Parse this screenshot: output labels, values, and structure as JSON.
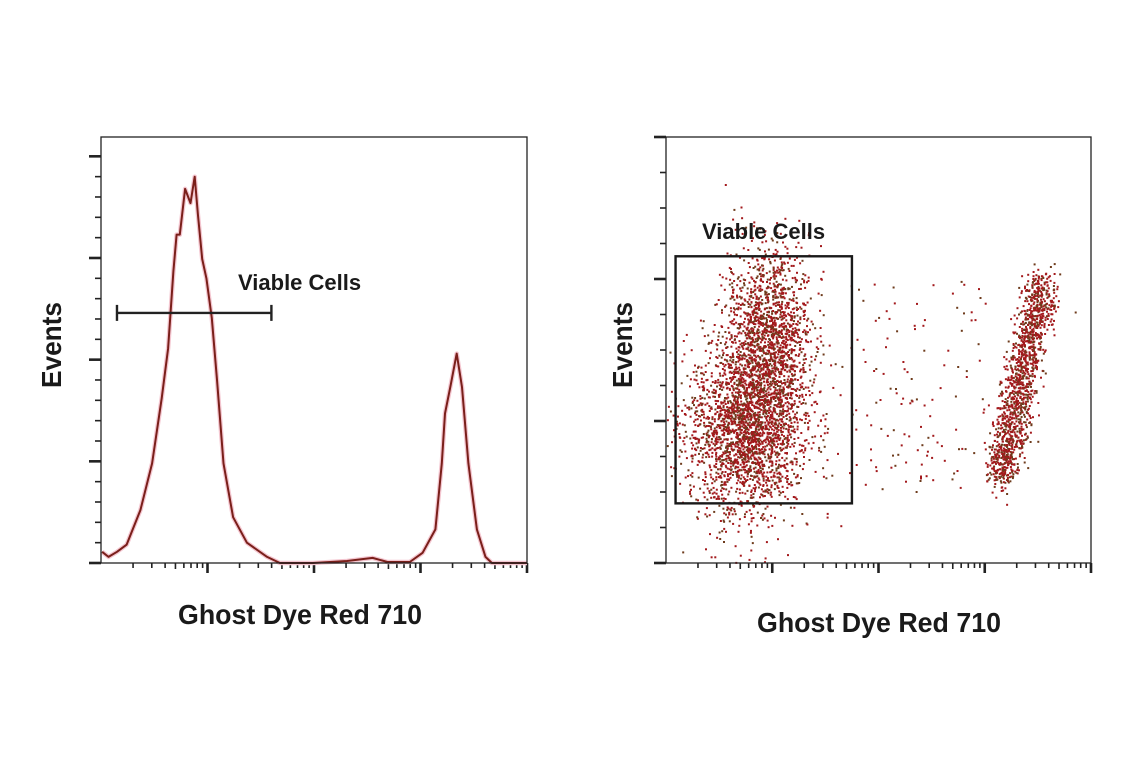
{
  "chart_data": [
    {
      "type": "line",
      "subtype": "histogram",
      "title": "",
      "xlabel": "Ghost Dye Red 710",
      "ylabel": "Events",
      "x_scale": "log (decades, unlabeled)",
      "xlim": [
        0,
        4
      ],
      "ylim": [
        0,
        4.19
      ],
      "x_major_ticks": [
        1,
        2,
        3,
        4
      ],
      "y_major_ticks": [
        0,
        1,
        2,
        3,
        4
      ],
      "grid": false,
      "line_color": "#7a1f1a",
      "series": [
        {
          "name": "Events",
          "x": [
            0.01,
            0.07,
            0.15,
            0.24,
            0.37,
            0.48,
            0.57,
            0.63,
            0.68,
            0.71,
            0.74,
            0.79,
            0.84,
            0.88,
            0.91,
            0.95,
            0.99,
            1.04,
            1.09,
            1.15,
            1.24,
            1.37,
            1.56,
            1.68,
            1.99,
            2.31,
            2.55,
            2.69,
            2.9,
            3.02,
            3.14,
            3.2,
            3.23,
            3.28,
            3.34,
            3.39,
            3.45,
            3.53,
            3.61,
            3.67,
            4.0
          ],
          "y": [
            0.11,
            0.06,
            0.11,
            0.18,
            0.52,
            0.98,
            1.62,
            2.11,
            2.87,
            3.23,
            3.23,
            3.68,
            3.54,
            3.8,
            3.43,
            2.99,
            2.8,
            2.41,
            1.79,
            0.98,
            0.45,
            0.2,
            0.06,
            0,
            0,
            0.02,
            0.05,
            0.01,
            0.01,
            0.1,
            0.33,
            0.98,
            1.47,
            1.73,
            2.06,
            1.73,
            0.98,
            0.33,
            0.06,
            0,
            0
          ]
        }
      ],
      "annotations": [
        {
          "type": "range-gate",
          "label": "Viable Cells",
          "x_range": [
            0.15,
            1.6
          ],
          "y": 2.46
        }
      ]
    },
    {
      "type": "scatter",
      "title": "",
      "xlabel": "Ghost Dye Red 710",
      "ylabel": "Events",
      "x_scale": "log (decades, unlabeled)",
      "xlim": [
        0,
        4
      ],
      "ylim": [
        0,
        3
      ],
      "x_major_ticks": [
        1,
        2,
        3,
        4
      ],
      "y_major_ticks": [
        0,
        1,
        2,
        3
      ],
      "grid": false,
      "point_colors": [
        "#a3191c",
        "#6e3b1c"
      ],
      "populations": [
        {
          "name": "viable-core",
          "center": [
            0.75,
            0.95
          ],
          "spread": [
            0.28,
            0.3
          ],
          "count": 2400
        },
        {
          "name": "viable-upper",
          "center": [
            0.95,
            1.6
          ],
          "spread": [
            0.2,
            0.3
          ],
          "count": 1500
        },
        {
          "name": "dead",
          "from": [
            3.15,
            0.66
          ],
          "to": [
            3.53,
            1.93
          ],
          "width": 0.08,
          "count": 1400
        },
        {
          "name": "intermediate",
          "x_range": [
            1.7,
            3.0
          ],
          "y_range": [
            0.5,
            2.0
          ],
          "count": 120
        }
      ],
      "annotations": [
        {
          "type": "rect-gate",
          "label": "Viable Cells",
          "x_range": [
            0.09,
            1.75
          ],
          "y_range": [
            0.42,
            2.16
          ]
        }
      ]
    }
  ]
}
